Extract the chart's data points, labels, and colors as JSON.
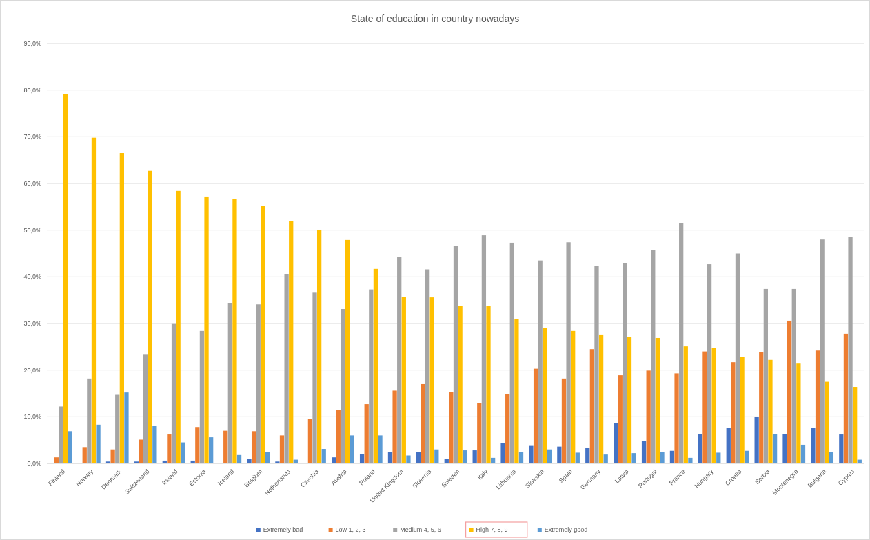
{
  "chart_data": {
    "type": "bar",
    "title": "State of education in country nowadays",
    "categories": [
      "Finland",
      "Norway",
      "Denmark",
      "Switzerland",
      "Ireland",
      "Estonia",
      "Iceland",
      "Belgium",
      "Netherlands",
      "Czechia",
      "Austria",
      "Poland",
      "United Kingdom",
      "Slovenia",
      "Sweden",
      "Italy",
      "Lithuania",
      "Slovakia",
      "Spain",
      "Germany",
      "Latvia",
      "Portugal",
      "France",
      "Hungary",
      "Croatia",
      "Serbia",
      "Montenegro",
      "Bulgaria",
      "Cyprus"
    ],
    "series": [
      {
        "name": "Extremely bad",
        "color": "#4472c4",
        "values": [
          null,
          0,
          0.4,
          0.4,
          0.6,
          0.6,
          0,
          1.0,
          0.4,
          null,
          1.3,
          2.0,
          2.5,
          2.5,
          1.0,
          2.8,
          4.4,
          3.9,
          3.6,
          3.4,
          8.7,
          4.8,
          2.7,
          6.3,
          7.6,
          10.0,
          6.3,
          7.6,
          6.2
        ]
      },
      {
        "name": "Low 1, 2, 3",
        "color": "#ed7d31",
        "values": [
          1.3,
          3.5,
          3.0,
          5.1,
          6.2,
          7.8,
          7.0,
          6.9,
          6.0,
          9.6,
          11.4,
          12.7,
          15.6,
          17.0,
          15.3,
          12.9,
          14.9,
          20.3,
          18.2,
          24.5,
          18.9,
          19.9,
          19.3,
          24.0,
          21.7,
          23.8,
          30.6,
          24.2,
          27.8
        ]
      },
      {
        "name": "Medium 4, 5, 6",
        "color": "#a5a5a5",
        "values": [
          12.2,
          18.2,
          14.7,
          23.3,
          29.9,
          28.4,
          34.3,
          34.1,
          40.6,
          36.6,
          33.1,
          37.3,
          44.3,
          41.6,
          46.7,
          48.9,
          47.3,
          43.5,
          47.4,
          42.4,
          43.0,
          45.7,
          51.5,
          42.7,
          45.0,
          37.4,
          37.4,
          48.0,
          48.5
        ]
      },
      {
        "name": "High 7, 8, 9",
        "color": "#ffc000",
        "values": [
          79.2,
          69.8,
          66.5,
          62.7,
          58.4,
          57.2,
          56.7,
          55.2,
          51.9,
          50.1,
          47.9,
          41.7,
          35.7,
          35.6,
          33.8,
          33.8,
          31.0,
          29.1,
          28.4,
          27.5,
          27.1,
          26.9,
          25.1,
          24.7,
          22.8,
          22.2,
          21.4,
          17.5,
          16.4
        ]
      },
      {
        "name": "Extremely good",
        "color": "#5b9bd5",
        "values": [
          6.9,
          8.3,
          15.2,
          8.1,
          4.5,
          5.6,
          1.8,
          2.5,
          0.8,
          3.1,
          6.0,
          6.0,
          1.7,
          3.0,
          2.8,
          1.2,
          2.4,
          3.0,
          2.3,
          1.9,
          2.2,
          2.5,
          1.2,
          2.3,
          2.7,
          6.3,
          4.0,
          2.5,
          0.8
        ]
      }
    ],
    "ylim": [
      0,
      90
    ],
    "yticks": [
      {
        "value": 0,
        "label": "0,0%"
      },
      {
        "value": 10,
        "label": "10,0%"
      },
      {
        "value": 20,
        "label": "20,0%"
      },
      {
        "value": 30,
        "label": "30,0%"
      },
      {
        "value": 40,
        "label": "40,0%"
      },
      {
        "value": 50,
        "label": "50,0%"
      },
      {
        "value": 60,
        "label": "60,0%"
      },
      {
        "value": 70,
        "label": "70,0%"
      },
      {
        "value": 80,
        "label": "80,0%"
      },
      {
        "value": 90,
        "label": "90,0%"
      }
    ],
    "grid": "y",
    "legend": "bottom"
  }
}
